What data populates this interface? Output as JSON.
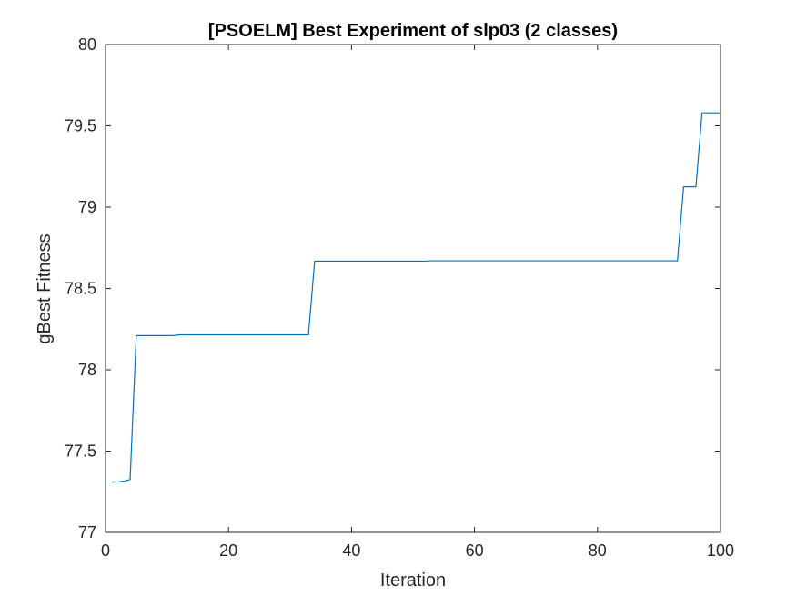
{
  "chart_data": {
    "type": "line",
    "title": "[PSOELM] Best Experiment of slp03 (2 classes)",
    "xlabel": "Iteration",
    "ylabel": "gBest Fitness",
    "xlim": [
      0,
      100
    ],
    "ylim": [
      77,
      80
    ],
    "xticks": [
      0,
      20,
      40,
      60,
      80,
      100
    ],
    "xtick_labels": [
      "0",
      "20",
      "40",
      "60",
      "80",
      "100"
    ],
    "yticks": [
      77,
      77.5,
      78,
      78.5,
      79,
      79.5,
      80
    ],
    "ytick_labels": [
      "77",
      "77.5",
      "78",
      "78.5",
      "79",
      "79.5",
      "80"
    ],
    "grid": false,
    "legend": false,
    "series": [
      {
        "color": "#0072BD",
        "x": [
          1,
          2,
          3,
          4,
          5,
          11,
          12,
          33,
          34,
          52,
          53,
          93,
          94,
          96,
          97,
          100
        ],
        "y": [
          77.31,
          77.31,
          77.315,
          77.325,
          78.21,
          78.21,
          78.215,
          78.215,
          78.668,
          78.668,
          78.67,
          78.67,
          79.125,
          79.125,
          79.58,
          79.58
        ]
      }
    ]
  }
}
